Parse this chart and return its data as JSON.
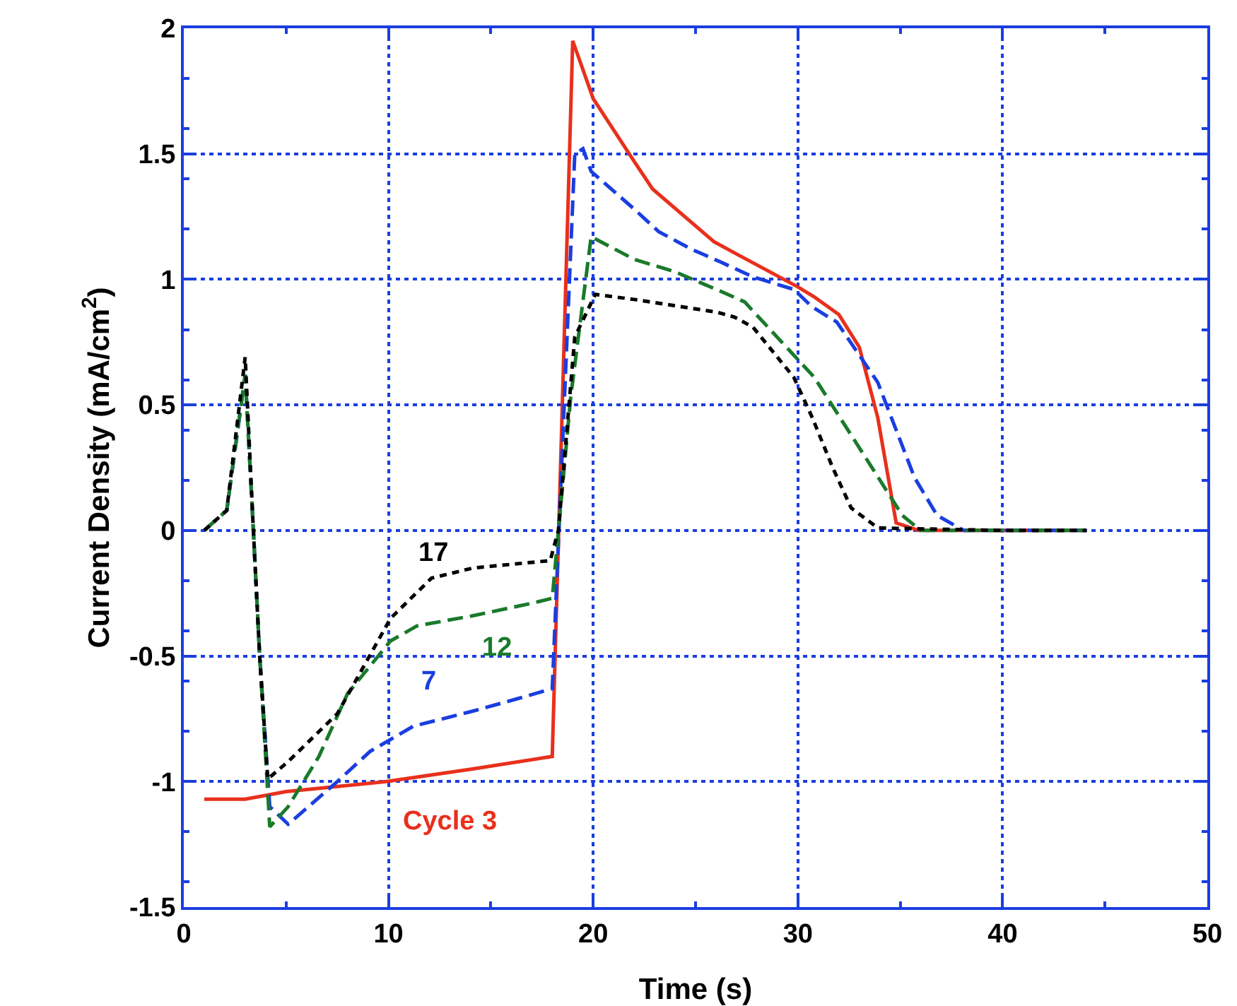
{
  "chart_data": {
    "type": "line",
    "xlabel": "Time (s)",
    "ylabel": "Current Density (mA/cm$^{2}$)",
    "xlim": [
      0,
      50
    ],
    "xticks": [
      0,
      10,
      20,
      30,
      40,
      50
    ],
    "ylim": [
      -1.5,
      2
    ],
    "yticks": [
      -1.5,
      -1,
      -0.5,
      0,
      0.5,
      1,
      1.5,
      2
    ],
    "grid": true,
    "legend": false,
    "series": [
      {
        "name": "Cycle 3",
        "color": "#e8301c",
        "line_style": "solid",
        "x": [
          1,
          3,
          5,
          9.9,
          14.1,
          18,
          19,
          20,
          22,
          22.9,
          23.9,
          25.9,
          26.8,
          30,
          30.8,
          32,
          33,
          33.9,
          34.8,
          35.9,
          40,
          44.1
        ],
        "values": [
          -1.07,
          -1.07,
          -1.04,
          -1,
          -0.95,
          -0.9,
          1.95,
          1.72,
          1.47,
          1.36,
          1.29,
          1.15,
          1.11,
          0.97,
          0.93,
          0.86,
          0.73,
          0.45,
          0.03,
          0,
          0,
          0
        ]
      },
      {
        "name": "7",
        "color": "#1a3ee0",
        "line_style": "dashed",
        "x": [
          1,
          2.1,
          3,
          3.4,
          3.7,
          4.2,
          5.1,
          7.5,
          9.1,
          11.2,
          14.1,
          16.3,
          18,
          19.1,
          19.5,
          19.9,
          22,
          23.2,
          24.8,
          26.2,
          27.8,
          29.8,
          30.7,
          31.9,
          33.9,
          35.7,
          36.8,
          38.1,
          40,
          44.1
        ],
        "values": [
          0,
          0.08,
          0.62,
          0,
          -0.49,
          -1.1,
          -1.17,
          -1,
          -0.88,
          -0.78,
          -0.72,
          -0.67,
          -0.63,
          1.5,
          1.52,
          1.43,
          1.28,
          1.19,
          1.12,
          1.07,
          1.01,
          0.96,
          0.89,
          0.83,
          0.59,
          0.21,
          0.06,
          0,
          0,
          0
        ]
      },
      {
        "name": "12",
        "color": "#1a7a2a",
        "line_style": "dashed",
        "x": [
          1,
          2.1,
          3,
          3.4,
          3.7,
          4.2,
          5.1,
          6.6,
          8,
          10.1,
          11.4,
          14.1,
          17,
          18,
          18.9,
          19.9,
          22,
          24,
          26.3,
          27.4,
          30.8,
          33.7,
          35.1,
          36,
          40,
          44.1
        ],
        "values": [
          0,
          0.08,
          0.62,
          0,
          -0.49,
          -1.18,
          -1.1,
          -0.9,
          -0.65,
          -0.44,
          -0.38,
          -0.34,
          -0.29,
          -0.27,
          0.53,
          1.17,
          1.08,
          1.03,
          0.95,
          0.91,
          0.61,
          0.24,
          0.06,
          0,
          0,
          0
        ]
      },
      {
        "name": "17",
        "color": "#000000",
        "line_style": "dotted",
        "x": [
          1,
          2.1,
          3,
          3.4,
          3.7,
          4.1,
          5.1,
          7.5,
          10.1,
          12.1,
          14.1,
          17.9,
          18.3,
          19.1,
          20.1,
          22,
          26,
          26.9,
          27.8,
          29.8,
          30.7,
          31.7,
          32.6,
          33.9,
          40,
          44.1
        ],
        "values": [
          0,
          0.08,
          0.69,
          0,
          -0.49,
          -0.99,
          -0.92,
          -0.73,
          -0.35,
          -0.19,
          -0.15,
          -0.12,
          0,
          0.77,
          0.94,
          0.92,
          0.87,
          0.85,
          0.81,
          0.61,
          0.45,
          0.25,
          0.09,
          0.01,
          0,
          0
        ]
      }
    ]
  }
}
